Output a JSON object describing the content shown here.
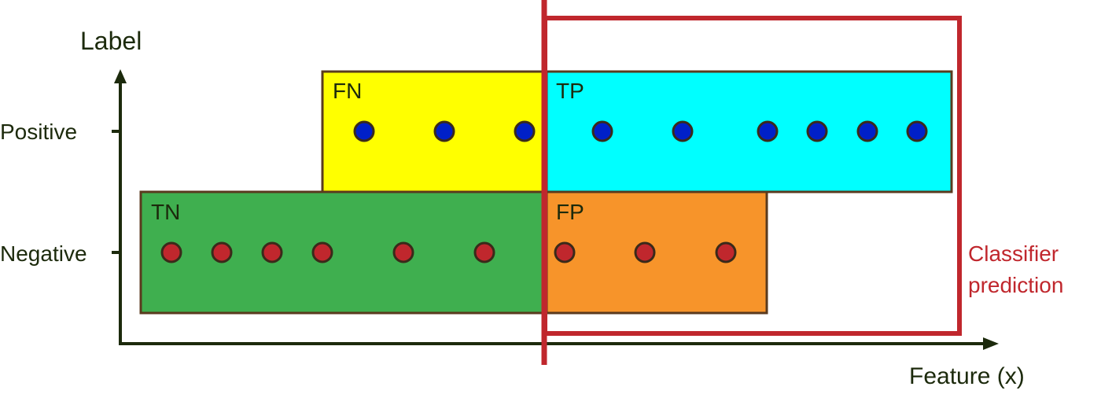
{
  "axes": {
    "y_title": "Label",
    "x_title": "Feature (x)",
    "y_ticks": [
      "Positive",
      "Negative"
    ]
  },
  "quadrants": {
    "fn": {
      "label": "FN",
      "color": "#ffff00"
    },
    "tp": {
      "label": "TP",
      "color": "#00ffff"
    },
    "tn": {
      "label": "TN",
      "color": "#3faf4f"
    },
    "fp": {
      "label": "FP",
      "color": "#f7942a"
    }
  },
  "classifier": {
    "label_line1": "Classifier",
    "label_line2": "prediction",
    "color": "#c0272d"
  },
  "colors": {
    "positive_dot": "#0020c8",
    "negative_dot": "#c0272d",
    "axis": "#1c2a0c",
    "box_border": "#5a3a1e"
  },
  "points": {
    "positive": [
      {
        "quadrant": "FN"
      },
      {
        "quadrant": "FN"
      },
      {
        "quadrant": "FN"
      },
      {
        "quadrant": "TP"
      },
      {
        "quadrant": "TP"
      },
      {
        "quadrant": "TP"
      },
      {
        "quadrant": "TP"
      },
      {
        "quadrant": "TP"
      },
      {
        "quadrant": "TP"
      }
    ],
    "negative": [
      {
        "quadrant": "TN"
      },
      {
        "quadrant": "TN"
      },
      {
        "quadrant": "TN"
      },
      {
        "quadrant": "TN"
      },
      {
        "quadrant": "TN"
      },
      {
        "quadrant": "TN"
      },
      {
        "quadrant": "FP"
      },
      {
        "quadrant": "FP"
      },
      {
        "quadrant": "FP"
      }
    ]
  }
}
